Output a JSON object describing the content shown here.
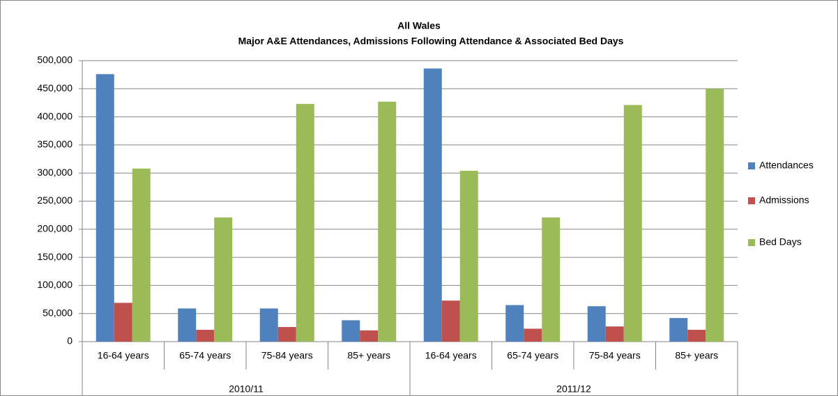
{
  "chart_data": {
    "type": "bar",
    "title": "All Wales",
    "subtitle": "Major A&E Attendances, Admissions Following Attendance & Associated Bed Days",
    "categories": [
      "16-64 years",
      "65-74 years",
      "75-84 years",
      "85+ years",
      "16-64 years",
      "65-74 years",
      "75-84 years",
      "85+ years"
    ],
    "groups": [
      "2010/11",
      "2011/12"
    ],
    "series": [
      {
        "name": "Attendances",
        "color": "#4f81bd",
        "values": [
          476000,
          59000,
          59000,
          38000,
          486000,
          65000,
          63000,
          42000
        ]
      },
      {
        "name": "Admissions",
        "color": "#c0504d",
        "values": [
          69000,
          21000,
          26000,
          20000,
          73000,
          23000,
          27000,
          21000
        ]
      },
      {
        "name": "Bed Days",
        "color": "#9bbb59",
        "values": [
          308000,
          221000,
          423000,
          427000,
          304000,
          221000,
          421000,
          450000
        ]
      }
    ],
    "ylim": [
      0,
      500000
    ],
    "yticks": [
      0,
      {
        "value": 50000,
        "label": "50,000"
      },
      {
        "value": 100000,
        "label": "100,000"
      },
      {
        "value": 150000,
        "label": "150,000"
      },
      {
        "value": 200000,
        "label": "200,000"
      },
      {
        "value": 250000,
        "label": "250,000"
      },
      {
        "value": 300000,
        "label": "300,000"
      },
      {
        "value": 350000,
        "label": "350,000"
      },
      {
        "value": 400000,
        "label": "400,000"
      },
      {
        "value": 450000,
        "label": "450,000"
      },
      {
        "value": 500000,
        "label": "500,000"
      }
    ],
    "grid": true,
    "legend": "right"
  }
}
